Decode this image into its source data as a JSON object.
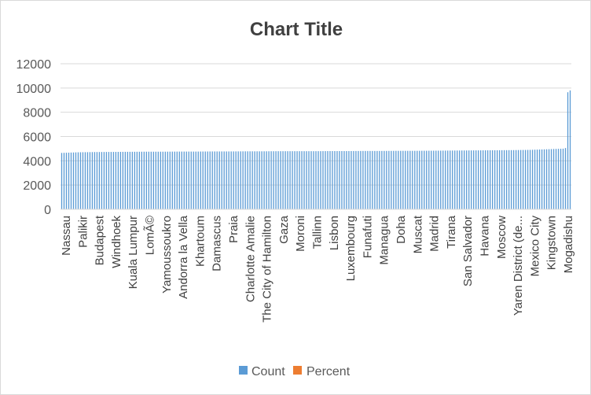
{
  "chart_data": {
    "type": "bar",
    "title": "Chart Title",
    "xlabel": "",
    "ylabel": "",
    "ylim": [
      0,
      12000
    ],
    "yticks": [
      0,
      2000,
      4000,
      6000,
      8000,
      10000,
      12000
    ],
    "grid": true,
    "legend_position": "bottom",
    "category_labels": [
      "Nassau",
      "Palikir",
      "Budapest",
      "Windhoek",
      "Kuala Lumpur",
      "LomÃ©",
      "Yamoussoukro",
      "Andorra la Vella",
      "Khartoum",
      "Damascus",
      "Praia",
      "Charlotte Amalie",
      "The City of Hamilton",
      "Gaza",
      "Moroni",
      "Tallinn",
      "Lisbon",
      "Luxembourg",
      "Funafuti",
      "Managua",
      "Doha",
      "Muscat",
      "Madrid",
      "Tirana",
      "San Salvador",
      "Havana",
      "Moscow",
      "Yaren District (de...",
      "Mexico City",
      "Kingstown",
      "Mogadishu"
    ],
    "labelled_category_count": 31,
    "series": [
      {
        "name": "Count",
        "color": "#5b9bd5",
        "bar_count": 217,
        "values_at_labels": [
          4650,
          4700,
          4720,
          4730,
          4740,
          4750,
          4750,
          4760,
          4760,
          4770,
          4770,
          4780,
          4780,
          4790,
          4790,
          4790,
          4800,
          4800,
          4810,
          4810,
          4820,
          4820,
          4830,
          4840,
          4850,
          4860,
          4870,
          4880,
          4900,
          4950,
          5000
        ],
        "last_values": [
          5050,
          9650,
          9800
        ]
      },
      {
        "name": "Percent",
        "color": "#ed7d31",
        "values_at_labels": [
          0,
          0,
          0,
          0,
          0,
          0,
          0,
          0,
          0,
          0,
          0,
          0,
          0,
          0,
          0,
          0,
          0,
          0,
          0,
          0,
          0,
          0,
          0,
          0,
          0,
          0,
          0,
          0,
          0,
          0,
          0
        ]
      }
    ]
  }
}
